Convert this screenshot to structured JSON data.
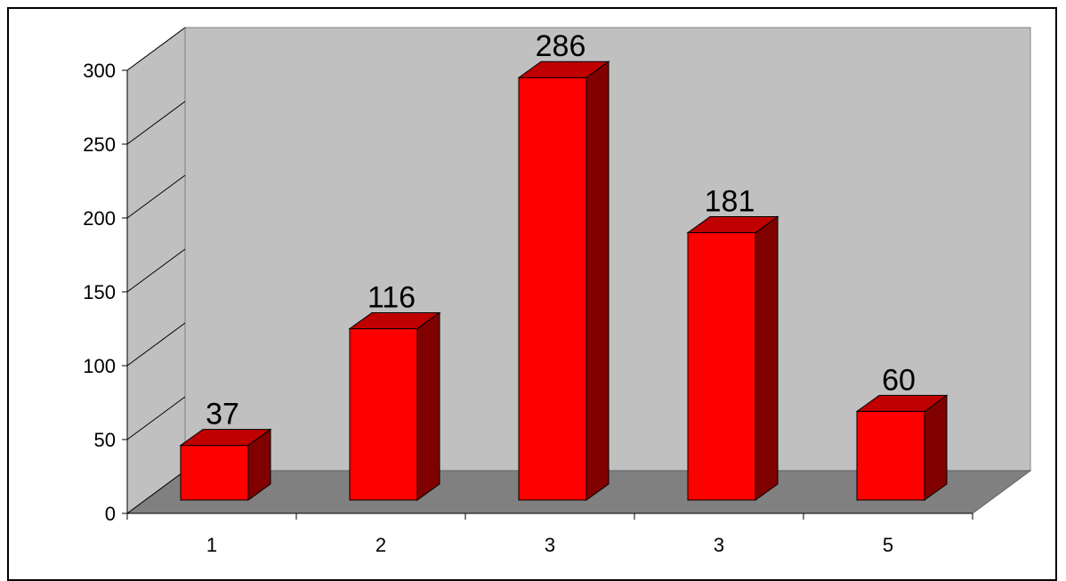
{
  "chart_data": {
    "type": "bar",
    "style": "3d-column",
    "title": "",
    "xlabel": "",
    "ylabel": "",
    "categories": [
      "1",
      "2",
      "3",
      "3",
      "5"
    ],
    "values": [
      37,
      116,
      286,
      181,
      60
    ],
    "data_labels": [
      "37",
      "116",
      "286",
      "181",
      "60"
    ],
    "ylim": [
      0,
      300
    ],
    "yticks": [
      0,
      50,
      100,
      150,
      200,
      250,
      300
    ],
    "ytick_labels": [
      "0",
      "50",
      "100",
      "150",
      "200",
      "250",
      "300"
    ],
    "grid": false,
    "legend": "none",
    "colors": {
      "bar_front": "#ff0000",
      "bar_top": "#c00000",
      "bar_side": "#800000",
      "back_wall": "#c0c0c0",
      "side_wall": "#c0c0c0",
      "floor": "#808080",
      "frame": "#000000"
    }
  }
}
